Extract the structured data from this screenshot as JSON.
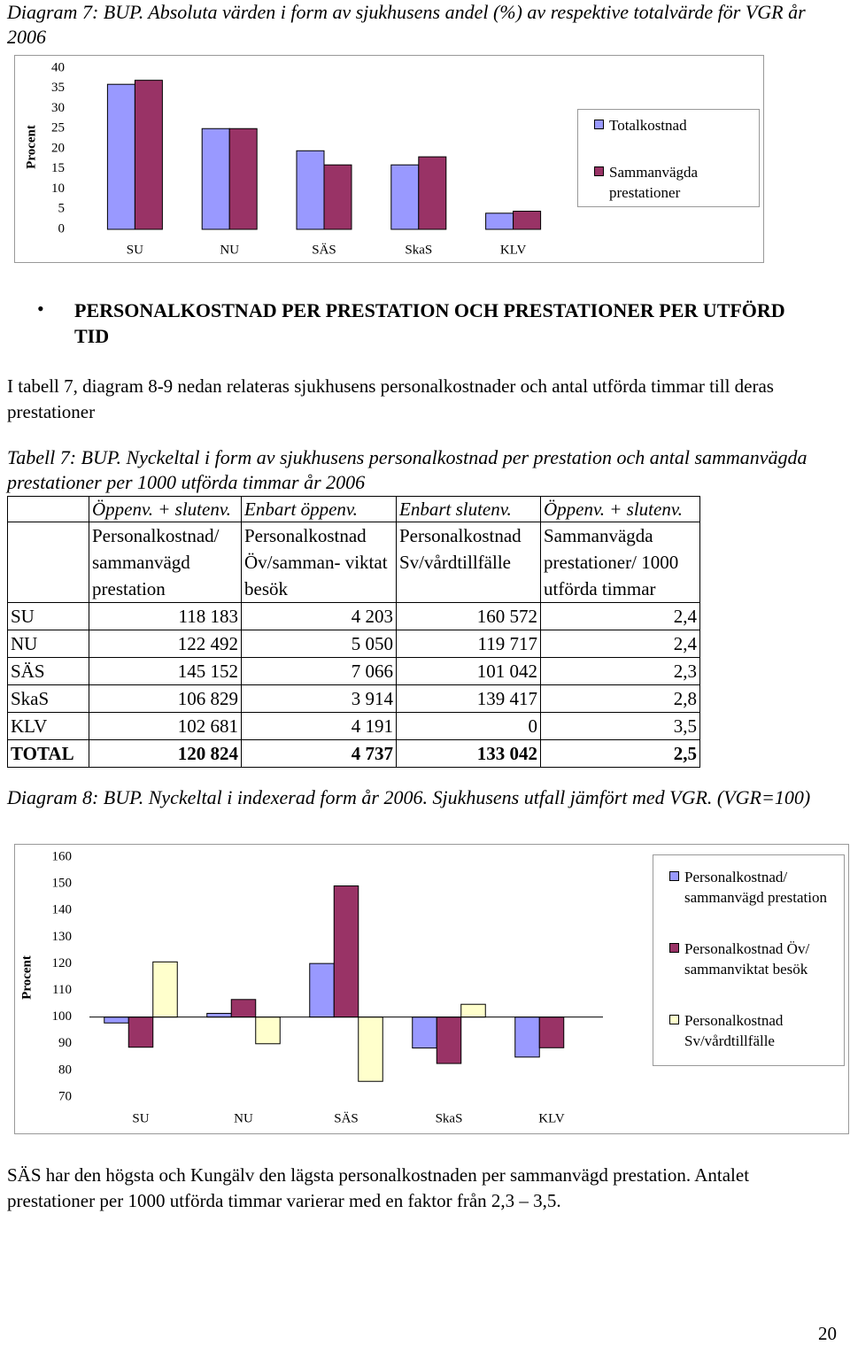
{
  "diagram7_caption": "Diagram 7: BUP. Absoluta värden i form av sjukhusens andel (%) av respektive totalvärde för VGR år 2006",
  "chart_data": [
    {
      "type": "bar",
      "ylabel": "Procent",
      "categories": [
        "SU",
        "NU",
        "SÄS",
        "SkaS",
        "KLV"
      ],
      "series": [
        {
          "name": "Totalkostnad",
          "color": "#9999ff",
          "values": [
            36,
            25,
            19.5,
            16,
            4
          ]
        },
        {
          "name": "Sammanvägda prestationer",
          "color": "#993366",
          "values": [
            37,
            25,
            16,
            18,
            4.5
          ]
        }
      ],
      "ylim": [
        0,
        40
      ],
      "yticks": [
        0,
        5,
        10,
        15,
        20,
        25,
        30,
        35,
        40
      ],
      "grid": false,
      "legend": "right"
    },
    {
      "type": "bar",
      "ylabel": "Procent",
      "categories": [
        "SU",
        "NU",
        "SÄS",
        "SkaS",
        "KLV"
      ],
      "series": [
        {
          "name": "Personalkostnad/ sammanvägd prestation",
          "color": "#9999ff",
          "values": [
            97.8,
            101.4,
            120.1,
            88.4,
            85.0
          ]
        },
        {
          "name": "Personalkostnad Öv/ sammanviktat besök",
          "color": "#993366",
          "values": [
            88.7,
            106.6,
            149.2,
            82.6,
            88.5
          ]
        },
        {
          "name": "Personalkostnad Sv/vårdtillfälle",
          "color": "#ffffcc",
          "values": [
            120.7,
            90.0,
            75.9,
            104.8,
            null
          ]
        }
      ],
      "ylim": [
        70,
        160
      ],
      "yticks": [
        70,
        80,
        90,
        100,
        110,
        120,
        130,
        140,
        150,
        160
      ],
      "base": 100,
      "grid": false,
      "legend": "right"
    }
  ],
  "heading": "PERSONALKOSTNAD PER PRESTATION OCH PRESTATIONER PER UTFÖRD TID",
  "intro": "I tabell 7, diagram 8-9 nedan relateras sjukhusens personalkostnader och antal utförda timmar till deras prestationer",
  "table_caption": "Tabell 7: BUP. Nyckeltal i form av sjukhusens personalkostnad per  prestation och antal sammanvägda prestationer per 1000 utförda timmar år 2006",
  "table": {
    "group_header": [
      "Öppenv. + slutenv.",
      "Enbart öppenv.",
      "Enbart slutenv.",
      "Öppenv. + slutenv."
    ],
    "column_headers": [
      "Personalkostnad/ sammanvägd prestation",
      "Personalkostnad Öv/samman- viktat besök",
      "Personalkostnad Sv/vårdtillfälle",
      "Sammanvägda prestationer/ 1000 utförda timmar"
    ],
    "rows": [
      [
        "SU",
        "118 183",
        "4 203",
        "160 572",
        "2,4"
      ],
      [
        "NU",
        "122 492",
        "5 050",
        "119 717",
        "2,4"
      ],
      [
        "SÄS",
        "145 152",
        "7 066",
        "101 042",
        "2,3"
      ],
      [
        "SkaS",
        "106 829",
        "3 914",
        "139 417",
        "2,8"
      ],
      [
        "KLV",
        "102 681",
        "4 191",
        "0",
        "3,5"
      ],
      [
        "TOTAL",
        "120 824",
        "4 737",
        "133 042",
        "2,5"
      ]
    ]
  },
  "diagram8_caption": "Diagram 8: BUP. Nyckeltal i indexerad form år 2006. Sjukhusens utfall jämfört med VGR. (VGR=100)",
  "conclusion": "SÄS har den högsta och Kungälv den lägsta personalkostnaden per sammanvägd prestation. Antalet prestationer per 1000 utförda timmar varierar med en faktor från 2,3 – 3,5.",
  "page_number": "20"
}
